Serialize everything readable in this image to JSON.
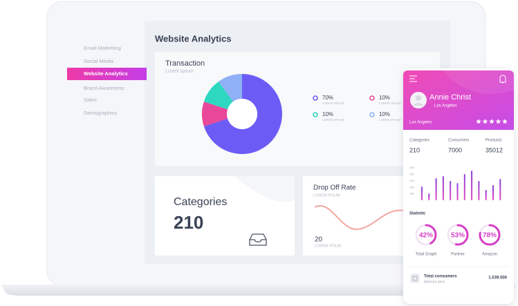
{
  "sidebar": {
    "items": [
      "Email Marketing",
      "Social Media",
      "Website Analytics",
      "Brand Awareness",
      "Sales",
      "Demographics"
    ],
    "active_index": 2
  },
  "header": {
    "title": "Website Analytics"
  },
  "transaction": {
    "title": "Transaction",
    "subtitle": "Lorem Ipsum",
    "items": [
      {
        "value": 70,
        "label": "70%",
        "caption": "LOREM IPSUM",
        "color": "#6c5cf5"
      },
      {
        "value": 10,
        "label": "10%",
        "caption": "LOREM IPSUM",
        "color": "#e8479a"
      },
      {
        "value": 10,
        "label": "10%",
        "caption": "LOREM IPSUM",
        "color": "#2ed8c0"
      },
      {
        "value": 10,
        "label": "10%",
        "caption": "LOREM IPSUM",
        "color": "#8fb0f5"
      }
    ]
  },
  "categories_card": {
    "title": "Categories",
    "value": 210
  },
  "drop_off": {
    "title": "Drop Off Rate",
    "subtitle": "LOREM IPSUM",
    "value": 20,
    "caption": "LOREM IPSUM"
  },
  "phone": {
    "name": "Annie Christ",
    "location": "Los Angeles",
    "region": "Los Angeles",
    "rating": 5,
    "stats": [
      {
        "label": "Categories",
        "value": 210
      },
      {
        "label": "Consumers",
        "value": 7000
      },
      {
        "label": "Products",
        "value": 35012
      }
    ],
    "chart": {
      "ylim": [
        50,
        300
      ],
      "yticks": [
        100,
        150,
        200,
        250,
        300
      ],
      "values": [
        156,
        103,
        220,
        236,
        199,
        183,
        252,
        279,
        199,
        130,
        167,
        215
      ]
    },
    "statistic": {
      "title": "Statistic",
      "gauges": [
        {
          "value": 42,
          "label": "42%",
          "caption": "Total Graph",
          "color": "#d63fc6"
        },
        {
          "value": 53,
          "label": "53%",
          "caption": "Partner",
          "color": "#d63fc6"
        },
        {
          "value": 78,
          "label": "78%",
          "caption": "Amazon",
          "color": "#d63fc6"
        }
      ]
    },
    "total": {
      "title": "Total consumers",
      "subtitle": "America area",
      "value": "1.039.000"
    }
  }
}
